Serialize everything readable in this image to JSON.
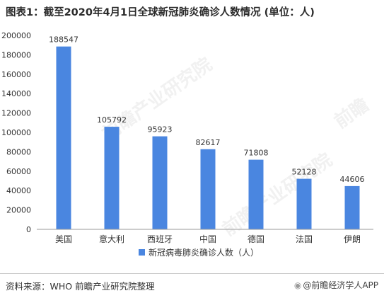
{
  "title": "图表1：截至2020年4月1日全球新冠肺炎确诊人数情况 (单位：人)",
  "source": "资料来源：WHO 前瞻产业研究院整理",
  "credit": "@前瞻经济学人APP",
  "watermarks": [
    "前瞻产业研究院",
    "前瞻产业研究院",
    "前瞻"
  ],
  "colors": {
    "bar": "#4a86e0",
    "axis": "#9a9a9a",
    "text": "#333333"
  },
  "chart_data": {
    "type": "bar",
    "categories": [
      "美国",
      "意大利",
      "西班牙",
      "中国",
      "德国",
      "法国",
      "伊朗"
    ],
    "series": [
      {
        "name": "新冠病毒肺炎确诊人数（人）",
        "values": [
          188547,
          105792,
          95923,
          82617,
          71808,
          52128,
          44606
        ]
      }
    ],
    "ylim": [
      0,
      200000
    ],
    "yticks": [
      0,
      20000,
      40000,
      60000,
      80000,
      100000,
      120000,
      140000,
      160000,
      180000,
      200000
    ],
    "grid": false,
    "legend": "bottom",
    "data_labels": true
  }
}
